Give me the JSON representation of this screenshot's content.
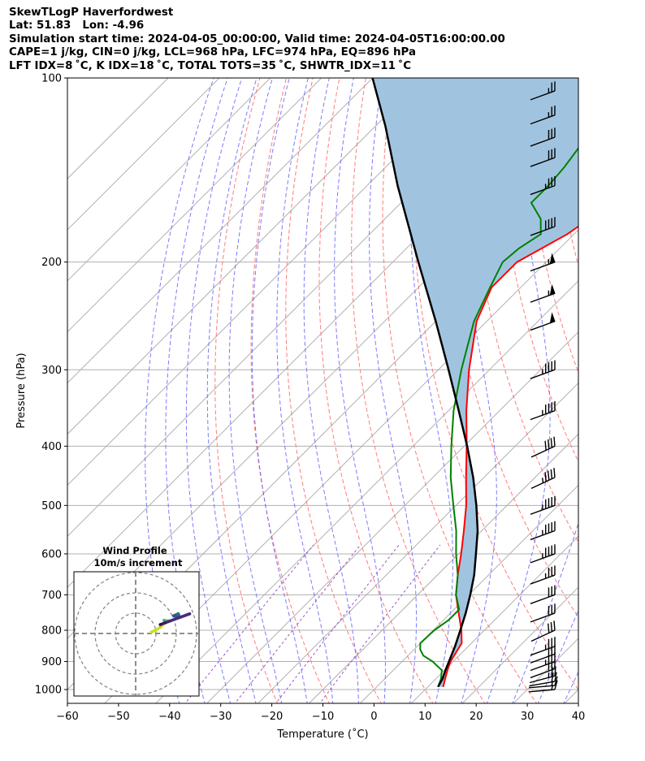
{
  "title_lines": [
    "SkewTLogP Haverfordwest",
    "Lat: 51.83   Lon: -4.96",
    "Simulation start time: 2024-04-05_00:00:00, Valid time: 2024-04-05T16:00:00.00",
    "CAPE=1 j/kg, CIN=0 j/kg, LCL=968 hPa, LFC=974 hPa, EQ=896 hPa",
    "LFT IDX=8 ˚C, K IDX=18 ˚C, TOTAL TOTS=35 ˚C, SHWTR_IDX=11 ˚C"
  ],
  "chart_data": {
    "type": "line",
    "xlabel": "Temperature (˚C)",
    "ylabel": "Pressure (hPa)",
    "xlim": [
      -60,
      40
    ],
    "ylim": [
      1050,
      100
    ],
    "x_ticks": [
      -60,
      -50,
      -40,
      -30,
      -20,
      -10,
      0,
      10,
      20,
      30,
      40
    ],
    "x_tick_labels": [
      "−60",
      "−50",
      "−40",
      "−30",
      "−20",
      "−10",
      "0",
      "10",
      "20",
      "30",
      "40"
    ],
    "y_ticks": [
      1000,
      900,
      800,
      700,
      600,
      500,
      400,
      300,
      200,
      100
    ],
    "y_scale": "log",
    "skew": "45 degrees",
    "grid": true,
    "series": [
      {
        "role": "temperature",
        "color": "#ff0000",
        "pressure": [
          990,
          960,
          930,
          900,
          870,
          840,
          800,
          770,
          740,
          700,
          650,
          600,
          550,
          500,
          450,
          400,
          350,
          300,
          250,
          220,
          200,
          180,
          160,
          150,
          140,
          130,
          120,
          110,
          100
        ],
        "values": [
          13,
          11.8,
          10.6,
          9.5,
          8.8,
          8.1,
          5.5,
          3.2,
          0.8,
          -2.5,
          -6,
          -9.5,
          -13.5,
          -18,
          -23.5,
          -29.5,
          -36.5,
          -44,
          -52,
          -55.7,
          -55.7,
          -51.3,
          -48.6,
          -48.5,
          -49.6,
          -52,
          -53.5,
          -54.5,
          -56
        ]
      },
      {
        "role": "dewpoint",
        "color": "#008000",
        "pressure": [
          990,
          960,
          930,
          900,
          880,
          860,
          840,
          800,
          770,
          740,
          700,
          650,
          600,
          550,
          500,
          450,
          400,
          350,
          300,
          250,
          220,
          200,
          190,
          180,
          170,
          160,
          150,
          140,
          130,
          120,
          110,
          100
        ],
        "values": [
          12,
          11,
          9.5,
          6,
          3,
          1.2,
          0,
          0.2,
          1,
          1,
          -2.5,
          -6,
          -10.5,
          -15,
          -20.5,
          -26.5,
          -32.5,
          -39,
          -45.5,
          -52.5,
          -56,
          -58.5,
          -58,
          -56.5,
          -59.5,
          -64.5,
          -64.5,
          -65,
          -66,
          -67,
          -68,
          -69
        ]
      },
      {
        "role": "parcel",
        "color": "#000000",
        "pressure": [
          990,
          960,
          930,
          900,
          850,
          800,
          750,
          700,
          650,
          600,
          550,
          500,
          450,
          400,
          350,
          300,
          250,
          200,
          150,
          120,
          100
        ],
        "values": [
          12,
          11.3,
          10.2,
          9.2,
          7.4,
          5.3,
          3.0,
          0.3,
          -2.8,
          -6.6,
          -10.8,
          -16.0,
          -22.1,
          -29.4,
          -38.0,
          -48.0,
          -60.0,
          -75.0,
          -94.0,
          -108.0,
          -120.0
        ]
      }
    ],
    "cape_fill_color": "#a0c4e0",
    "dry_adiabat_color": "#ff6464",
    "moist_adiabat_color": "#6464ff",
    "mixing_ratio_color": "#a050c8",
    "wind_barbs": {
      "pressure": [
        1000,
        985,
        970,
        950,
        925,
        900,
        875,
        850,
        800,
        750,
        700,
        650,
        600,
        550,
        500,
        450,
        400,
        350,
        300,
        250,
        225,
        200,
        175,
        150,
        135,
        125,
        115,
        105
      ],
      "speed_kt": [
        15,
        15,
        20,
        25,
        30,
        35,
        30,
        35,
        30,
        30,
        30,
        35,
        45,
        45,
        45,
        45,
        40,
        45,
        45,
        50,
        55,
        55,
        40,
        35,
        30,
        30,
        25,
        25
      ],
      "direction_deg": [
        265,
        265,
        260,
        255,
        250,
        250,
        250,
        250,
        245,
        250,
        250,
        250,
        250,
        250,
        250,
        245,
        245,
        250,
        250,
        250,
        250,
        250,
        250,
        250,
        250,
        250,
        250,
        250
      ]
    },
    "inset": {
      "title": "Wind Profile",
      "subtitle": "10m/s increment"
    }
  }
}
